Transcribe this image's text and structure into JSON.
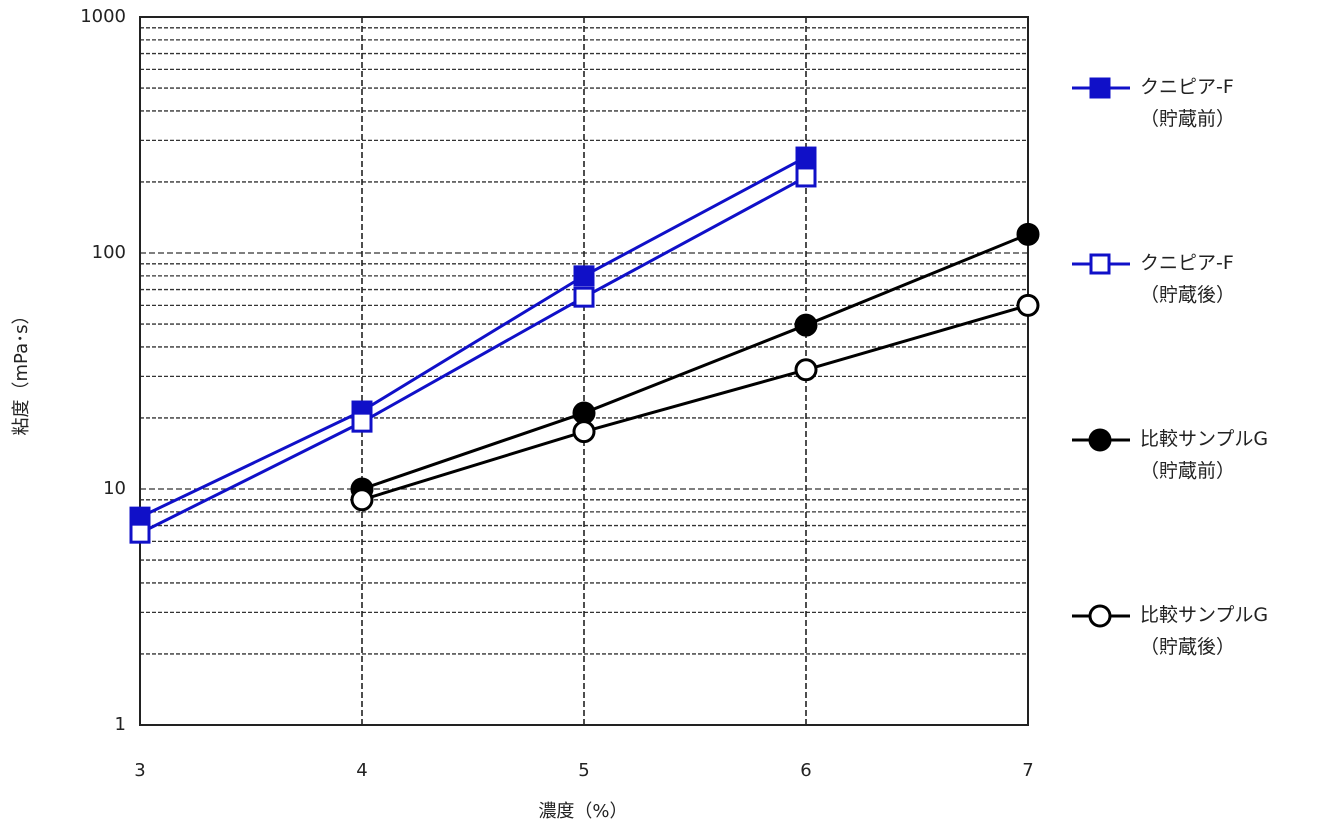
{
  "chart_data": {
    "type": "line",
    "x_label": "濃度（%）",
    "y_label": "粘度（mPa･s）",
    "x": [
      3,
      4,
      5,
      6,
      7
    ],
    "xlim": [
      3,
      7
    ],
    "xticks": [
      3,
      4,
      5,
      6,
      7
    ],
    "ylim": [
      1,
      1000
    ],
    "yticks": [
      1,
      10,
      100,
      1000
    ],
    "y_log": true,
    "grid": true,
    "yminorticks": [
      2,
      3,
      4,
      5,
      6,
      7,
      8,
      9,
      20,
      30,
      40,
      50,
      60,
      70,
      80,
      90,
      200,
      300,
      400,
      500,
      600,
      700,
      800,
      900
    ],
    "legend": "right",
    "series": [
      {
        "name": "クニピア-F\n（貯蔵前）",
        "color": "#1010c8",
        "marker": "square",
        "filled": true,
        "values": [
          7.6,
          21.4,
          80,
          255,
          null
        ]
      },
      {
        "name": "クニピア-F\n（貯蔵後）",
        "color": "#1010c8",
        "marker": "square",
        "filled": false,
        "values": [
          6.5,
          19.2,
          65,
          210,
          null
        ]
      },
      {
        "name": "比較サンプルG\n（貯蔵前）",
        "color": "#000000",
        "marker": "circle",
        "filled": true,
        "values": [
          null,
          10,
          21,
          49.5,
          120
        ]
      },
      {
        "name": "比較サンプルG\n（貯蔵後）",
        "color": "#000000",
        "marker": "circle",
        "filled": false,
        "values": [
          null,
          9,
          17.5,
          32,
          60
        ]
      }
    ]
  }
}
